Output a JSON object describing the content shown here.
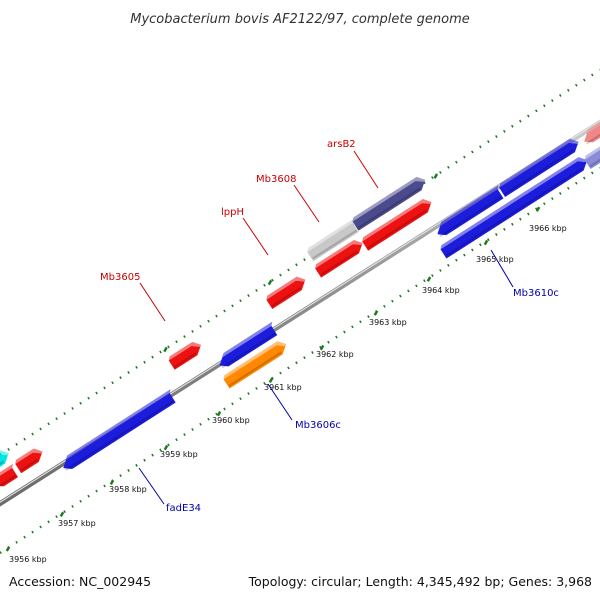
{
  "title": "Mycobacterium bovis AF2122/97, complete genome",
  "footer": {
    "accession": "Accession: NC_002945",
    "topology": "Topology: circular; Length: 4,345,492 bp; Genes: 3,968"
  },
  "colors": {
    "backbone": "#8a8a8a",
    "ticks": "#1e7a1e",
    "forward_label": "#cc0000",
    "reverse_label": "#0000aa"
  },
  "kbp_labels": [
    "3956 kbp",
    "3957 kbp",
    "3958 kbp",
    "3959 kbp",
    "3960 kbp",
    "3961 kbp",
    "3962 kbp",
    "3963 kbp",
    "3964 kbp",
    "3965 kbp",
    "3966 kbp"
  ],
  "gene_labels": [
    {
      "text": "arsB2",
      "strand": "forward"
    },
    {
      "text": "Mb3608",
      "strand": "forward"
    },
    {
      "text": "lppH",
      "strand": "forward"
    },
    {
      "text": "Mb3605",
      "strand": "forward"
    },
    {
      "text": "Mb3610c",
      "strand": "reverse"
    },
    {
      "text": "Mb3606c",
      "strand": "reverse"
    },
    {
      "text": "fadE34",
      "strand": "reverse"
    }
  ],
  "features": [
    {
      "color": "#ee1111"
    },
    {
      "color": "#ee1111"
    },
    {
      "color": "#00e5e5"
    },
    {
      "color": "#1c1cdd"
    },
    {
      "color": "#ee1111"
    },
    {
      "color": "#1c1cdd"
    },
    {
      "color": "#ff8800"
    },
    {
      "color": "#ee1111"
    },
    {
      "color": "#ee1111"
    },
    {
      "color": "#c8c8c8"
    },
    {
      "color": "#4a4a8c"
    },
    {
      "color": "#ee1111"
    },
    {
      "color": "#1c1cdd"
    },
    {
      "color": "#1c1cdd"
    },
    {
      "color": "#1c1cdd"
    },
    {
      "color": "#f08888"
    },
    {
      "color": "#8a8ad8"
    }
  ]
}
